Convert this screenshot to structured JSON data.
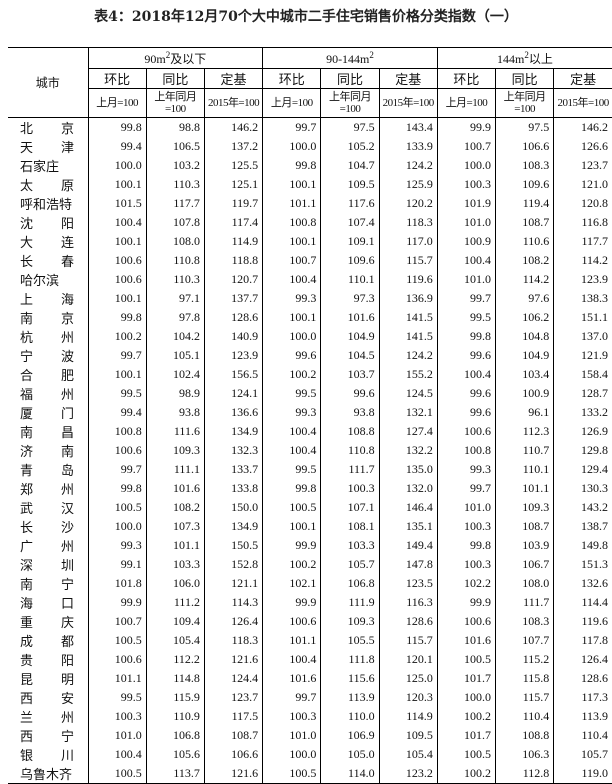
{
  "title": "表4：2018年12月70个大中城市二手住宅销售价格分类指数（一）",
  "header": {
    "city": "城市",
    "groups": [
      {
        "pre": "90m",
        "sup": "2",
        "post": "及以下"
      },
      {
        "pre": "90-144m",
        "sup": "2",
        "post": ""
      },
      {
        "pre": "144m",
        "sup": "2",
        "post": "以上"
      }
    ],
    "sub": [
      "环比",
      "同比",
      "定基"
    ],
    "base": [
      "上月=100",
      "上年同月=100",
      "2015年=100"
    ]
  },
  "rows": [
    [
      "北京",
      "99.8",
      "98.8",
      "146.2",
      "99.7",
      "97.5",
      "143.4",
      "99.9",
      "97.5",
      "146.2"
    ],
    [
      "天津",
      "99.4",
      "106.5",
      "137.2",
      "100.0",
      "105.2",
      "133.9",
      "100.7",
      "106.6",
      "126.6"
    ],
    [
      "石家庄",
      "100.0",
      "103.2",
      "125.5",
      "99.8",
      "104.7",
      "124.2",
      "100.0",
      "108.3",
      "123.7"
    ],
    [
      "太原",
      "100.1",
      "110.3",
      "125.1",
      "100.1",
      "109.5",
      "125.9",
      "100.3",
      "109.6",
      "121.0"
    ],
    [
      "呼和浩特",
      "101.5",
      "117.7",
      "119.7",
      "101.1",
      "117.6",
      "120.2",
      "101.9",
      "119.4",
      "120.8"
    ],
    [
      "沈阳",
      "100.4",
      "107.8",
      "117.4",
      "100.8",
      "107.4",
      "118.3",
      "101.0",
      "108.7",
      "116.8"
    ],
    [
      "大连",
      "100.1",
      "108.0",
      "114.9",
      "100.1",
      "109.1",
      "117.0",
      "100.9",
      "110.6",
      "117.7"
    ],
    [
      "长春",
      "100.6",
      "110.8",
      "118.8",
      "100.7",
      "109.6",
      "115.7",
      "100.4",
      "108.2",
      "114.2"
    ],
    [
      "哈尔滨",
      "100.6",
      "110.3",
      "120.7",
      "100.4",
      "110.1",
      "119.6",
      "101.0",
      "114.2",
      "123.9"
    ],
    [
      "上海",
      "100.1",
      "97.1",
      "137.7",
      "99.3",
      "97.3",
      "136.9",
      "99.7",
      "97.6",
      "138.3"
    ],
    [
      "南京",
      "99.8",
      "97.8",
      "128.6",
      "100.1",
      "101.6",
      "141.5",
      "99.5",
      "106.2",
      "151.1"
    ],
    [
      "杭州",
      "100.2",
      "104.2",
      "140.9",
      "100.0",
      "104.9",
      "141.5",
      "99.8",
      "104.8",
      "137.0"
    ],
    [
      "宁波",
      "99.7",
      "105.1",
      "123.9",
      "99.6",
      "104.5",
      "124.2",
      "99.6",
      "104.9",
      "121.9"
    ],
    [
      "合肥",
      "100.1",
      "102.4",
      "156.5",
      "100.2",
      "103.7",
      "155.2",
      "100.4",
      "103.4",
      "158.4"
    ],
    [
      "福州",
      "99.5",
      "98.9",
      "124.1",
      "99.5",
      "99.6",
      "124.5",
      "99.6",
      "100.9",
      "128.7"
    ],
    [
      "厦门",
      "99.4",
      "93.8",
      "136.6",
      "99.3",
      "93.8",
      "132.1",
      "99.6",
      "96.1",
      "133.2"
    ],
    [
      "南昌",
      "100.8",
      "111.6",
      "134.9",
      "100.4",
      "108.8",
      "127.4",
      "100.6",
      "112.3",
      "126.9"
    ],
    [
      "济南",
      "100.6",
      "109.3",
      "132.3",
      "100.4",
      "110.8",
      "132.2",
      "100.8",
      "110.7",
      "129.8"
    ],
    [
      "青岛",
      "99.7",
      "111.1",
      "133.7",
      "99.5",
      "111.7",
      "135.0",
      "99.3",
      "110.1",
      "129.4"
    ],
    [
      "郑州",
      "99.8",
      "101.6",
      "133.8",
      "99.8",
      "100.3",
      "132.0",
      "99.7",
      "101.1",
      "130.3"
    ],
    [
      "武汉",
      "100.5",
      "108.2",
      "150.0",
      "100.5",
      "107.1",
      "146.4",
      "101.0",
      "109.3",
      "143.2"
    ],
    [
      "长沙",
      "100.0",
      "107.3",
      "134.9",
      "100.1",
      "108.1",
      "135.1",
      "100.3",
      "108.7",
      "138.7"
    ],
    [
      "广州",
      "99.3",
      "101.1",
      "150.5",
      "99.9",
      "103.3",
      "149.4",
      "99.8",
      "103.9",
      "149.8"
    ],
    [
      "深圳",
      "99.1",
      "103.3",
      "152.8",
      "100.2",
      "105.7",
      "147.8",
      "100.3",
      "106.7",
      "151.3"
    ],
    [
      "南宁",
      "101.8",
      "106.0",
      "121.1",
      "102.1",
      "106.8",
      "123.5",
      "102.2",
      "108.0",
      "132.6"
    ],
    [
      "海口",
      "99.9",
      "111.2",
      "114.3",
      "99.9",
      "111.9",
      "116.3",
      "99.9",
      "111.7",
      "114.4"
    ],
    [
      "重庆",
      "100.7",
      "109.4",
      "126.4",
      "100.6",
      "109.3",
      "128.6",
      "100.6",
      "108.3",
      "119.6"
    ],
    [
      "成都",
      "100.5",
      "105.4",
      "118.3",
      "101.1",
      "105.5",
      "115.7",
      "101.6",
      "107.7",
      "117.8"
    ],
    [
      "贵阳",
      "100.6",
      "112.2",
      "121.6",
      "100.4",
      "111.8",
      "120.1",
      "100.5",
      "115.2",
      "126.4"
    ],
    [
      "昆明",
      "101.1",
      "114.8",
      "124.4",
      "101.6",
      "115.6",
      "125.0",
      "101.7",
      "115.8",
      "128.6"
    ],
    [
      "西安",
      "99.5",
      "115.9",
      "123.7",
      "99.7",
      "113.9",
      "120.3",
      "100.0",
      "115.7",
      "117.3"
    ],
    [
      "兰州",
      "100.3",
      "110.9",
      "117.5",
      "100.3",
      "110.0",
      "114.9",
      "100.2",
      "110.4",
      "113.9"
    ],
    [
      "西宁",
      "101.0",
      "106.8",
      "108.7",
      "101.0",
      "106.9",
      "109.5",
      "101.7",
      "108.8",
      "110.4"
    ],
    [
      "银川",
      "100.4",
      "105.6",
      "106.6",
      "100.0",
      "105.0",
      "105.4",
      "100.5",
      "106.3",
      "105.7"
    ],
    [
      "乌鲁木齐",
      "100.5",
      "113.7",
      "121.6",
      "100.5",
      "114.0",
      "123.2",
      "100.2",
      "112.8",
      "119.0"
    ]
  ]
}
